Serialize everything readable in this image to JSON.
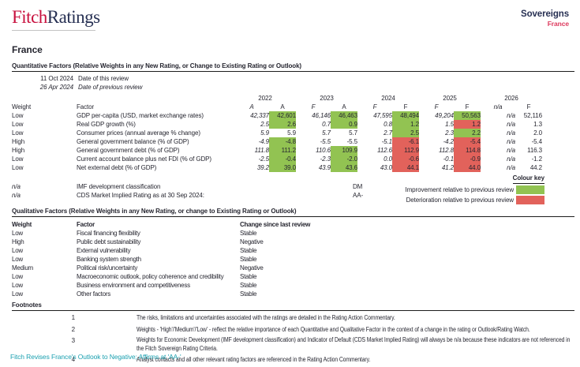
{
  "header": {
    "logo_fitch": "Fitch",
    "logo_ratings": "Ratings",
    "sector": "Sovereigns",
    "country": "France"
  },
  "page_title": "France",
  "colors": {
    "improvement_green": "#92c352",
    "deterioration_red": "#e2625b",
    "fitch_logo_red": "#c8103e",
    "navy": "#273053",
    "country_red": "#dd3a5e",
    "link_teal": "#1ba0b0"
  },
  "quantitative": {
    "title": "Quantitative Factors (Relative Weights in any New Rating, or Change to Existing Rating or Outlook)",
    "this_review": {
      "date": "11 Oct 2024",
      "label": "Date of this review"
    },
    "previous_review": {
      "date": "26 Apr 2024",
      "label": "Date of previous review"
    },
    "col_headers": {
      "weight": "Weight",
      "factor": "Factor"
    },
    "years": [
      {
        "year": "2022",
        "prev": "A",
        "curr": "A"
      },
      {
        "year": "2023",
        "prev": "F",
        "curr": "A"
      },
      {
        "year": "2024",
        "prev": "F",
        "curr": "F"
      },
      {
        "year": "2025",
        "prev": "F",
        "curr": "F"
      },
      {
        "year": "2026",
        "prev": "n/a",
        "curr": "F"
      }
    ],
    "rows": [
      {
        "weight": "Low",
        "factor": "GDP per-capita (USD, market exchange rates)",
        "values": [
          {
            "prev": "42,337",
            "curr": "42,601",
            "status": "improvement"
          },
          {
            "prev": "46,146",
            "curr": "46,463",
            "status": "improvement"
          },
          {
            "prev": "47,595",
            "curr": "48,494",
            "status": "improvement"
          },
          {
            "prev": "49,204",
            "curr": "50,563",
            "status": "improvement"
          },
          {
            "prev": "n/a",
            "curr": "52,116",
            "status": "none"
          }
        ]
      },
      {
        "weight": "Low",
        "factor": "Real GDP growth (%)",
        "values": [
          {
            "prev": "2.5",
            "curr": "2.6",
            "status": "improvement"
          },
          {
            "prev": "0.7",
            "curr": "0.9",
            "status": "improvement"
          },
          {
            "prev": "0.8",
            "curr": "1.2",
            "status": "improvement"
          },
          {
            "prev": "1.5",
            "curr": "1.2",
            "status": "deterioration"
          },
          {
            "prev": "n/a",
            "curr": "1.3",
            "status": "none"
          }
        ]
      },
      {
        "weight": "Low",
        "factor": "Consumer prices (annual average % change)",
        "values": [
          {
            "prev": "5.9",
            "curr": "5.9",
            "status": "none"
          },
          {
            "prev": "5.7",
            "curr": "5.7",
            "status": "none"
          },
          {
            "prev": "2.7",
            "curr": "2.5",
            "status": "improvement"
          },
          {
            "prev": "2.3",
            "curr": "2.2",
            "status": "improvement"
          },
          {
            "prev": "n/a",
            "curr": "2.0",
            "status": "none"
          }
        ]
      },
      {
        "weight": "High",
        "factor": "General government balance (% of GDP)",
        "values": [
          {
            "prev": "-4.9",
            "curr": "-4.8",
            "status": "improvement"
          },
          {
            "prev": "-5.5",
            "curr": "-5.5",
            "status": "none"
          },
          {
            "prev": "-5.1",
            "curr": "-6.1",
            "status": "deterioration"
          },
          {
            "prev": "-4.2",
            "curr": "-5.4",
            "status": "deterioration"
          },
          {
            "prev": "n/a",
            "curr": "-5.4",
            "status": "none"
          }
        ]
      },
      {
        "weight": "High",
        "factor": "General government debt (% of GDP)",
        "values": [
          {
            "prev": "111.8",
            "curr": "111.2",
            "status": "improvement"
          },
          {
            "prev": "110.6",
            "curr": "109.9",
            "status": "improvement"
          },
          {
            "prev": "112.6",
            "curr": "112.9",
            "status": "deterioration"
          },
          {
            "prev": "112.8",
            "curr": "114.8",
            "status": "deterioration"
          },
          {
            "prev": "n/a",
            "curr": "116.3",
            "status": "none"
          }
        ]
      },
      {
        "weight": "Low",
        "factor": "Current account balance plus net FDI (% of GDP)",
        "values": [
          {
            "prev": "-2.5",
            "curr": "-0.4",
            "status": "improvement"
          },
          {
            "prev": "-2.3",
            "curr": "-2.0",
            "status": "improvement"
          },
          {
            "prev": "0.0",
            "curr": "-0.6",
            "status": "deterioration"
          },
          {
            "prev": "-0.1",
            "curr": "-0.9",
            "status": "deterioration"
          },
          {
            "prev": "n/a",
            "curr": "-1.2",
            "status": "none"
          }
        ]
      },
      {
        "weight": "Low",
        "factor": "Net external debt (% of GDP)",
        "values": [
          {
            "prev": "39.2",
            "curr": "39.0",
            "status": "improvement"
          },
          {
            "prev": "43.9",
            "curr": "43.6",
            "status": "improvement"
          },
          {
            "prev": "43.0",
            "curr": "44.1",
            "status": "deterioration"
          },
          {
            "prev": "41.2",
            "curr": "44.0",
            "status": "deterioration"
          },
          {
            "prev": "n/a",
            "curr": "44.2",
            "status": "none"
          }
        ]
      }
    ],
    "extra_rows": [
      {
        "weight": "n/a",
        "factor": "IMF development classification",
        "value": "DM"
      },
      {
        "weight": "n/a",
        "factor": "CDS Market Implied Rating as at 30 Sep 2024:",
        "value": "AA-"
      }
    ]
  },
  "colour_key": {
    "title": "Colour key",
    "items": [
      {
        "label": "Improvement relative to previous review",
        "status": "improvement"
      },
      {
        "label": "Deterioration relative to previous review",
        "status": "deterioration"
      }
    ]
  },
  "qualitative": {
    "title": "Qualitative Factors (Relative Weights in any New Rating, or change to Existing Rating or Outlook)",
    "headers": {
      "weight": "Weight",
      "factor": "Factor",
      "change": "Change since last review"
    },
    "rows": [
      {
        "weight": "Low",
        "factor": "Fiscal financing flexibility",
        "change": "Stable"
      },
      {
        "weight": "High",
        "factor": "Public debt sustainability",
        "change": "Negative"
      },
      {
        "weight": "Low",
        "factor": "External vulnerability",
        "change": "Stable"
      },
      {
        "weight": "Low",
        "factor": "Banking system strength",
        "change": "Stable"
      },
      {
        "weight": "Medium",
        "factor": "Political risk/uncertainty",
        "change": "Negative"
      },
      {
        "weight": "Low",
        "factor": "Macroeconomic outlook, policy coherence and credibility",
        "change": "Stable"
      },
      {
        "weight": "Low",
        "factor": "Business environment and competitiveness",
        "change": "Stable"
      },
      {
        "weight": "Low",
        "factor": "Other factors",
        "change": "Stable"
      }
    ]
  },
  "footnotes": {
    "title": "Footnotes",
    "items": [
      {
        "num": "1",
        "text": "The risks, limitations and uncertainties associated with the ratings are detailed in the Rating Action Commentary."
      },
      {
        "num": "2",
        "text": "Weights - 'High'/'Medium'/'Low' - reflect the relative importance of each Quantitative and Qualitative Factor in the context of a change in the rating or Outlook/Rating Watch."
      },
      {
        "num": "3",
        "text": "Weights for Economic Development (IMF development classification) and Indicator of Default (CDS Market Implied Rating) will always be n/a because these indicators are not referenced in the Fitch Sovereign Rating Criteria."
      },
      {
        "num": "4",
        "text": "Analyst contacts and all other relevant rating factors are referenced in the Rating Action Commentary."
      }
    ]
  },
  "footer_link": {
    "text": "Fitch Revises France's Outlook to Negative; Affirms at 'AA-'"
  }
}
